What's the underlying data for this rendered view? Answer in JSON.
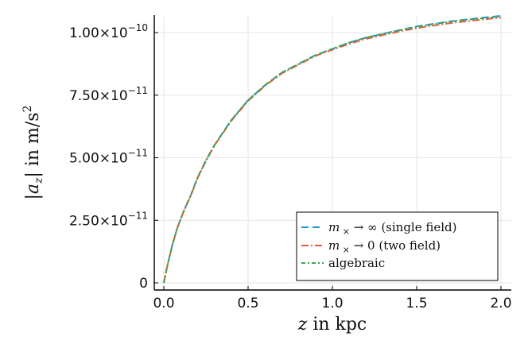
{
  "chart_data": {
    "type": "line",
    "xlabel": "z in kpc",
    "ylabel": "|a_z| in m/s²",
    "xlim": [
      0,
      2.0
    ],
    "ylim": [
      0,
      1.07e-10
    ],
    "grid": true,
    "legend_position": "bottom-right",
    "x_ticks": [
      {
        "value": 0.0,
        "label": "0.0"
      },
      {
        "value": 0.5,
        "label": "0.5"
      },
      {
        "value": 1.0,
        "label": "1.0"
      },
      {
        "value": 1.5,
        "label": "1.5"
      },
      {
        "value": 2.0,
        "label": "2.0"
      }
    ],
    "y_ticks": [
      {
        "value": 0,
        "mant": "0",
        "exp": ""
      },
      {
        "value": 2.5e-11,
        "mant": "2.50×10",
        "exp": "−11"
      },
      {
        "value": 5e-11,
        "mant": "5.00×10",
        "exp": "−11"
      },
      {
        "value": 7.5e-11,
        "mant": "7.50×10",
        "exp": "−11"
      },
      {
        "value": 1e-10,
        "mant": "1.00×10",
        "exp": "−10"
      }
    ],
    "x": [
      0.0,
      0.02,
      0.05,
      0.08,
      0.12,
      0.16,
      0.2,
      0.25,
      0.3,
      0.35,
      0.4,
      0.45,
      0.5,
      0.6,
      0.7,
      0.8,
      0.9,
      1.0,
      1.1,
      1.2,
      1.3,
      1.4,
      1.5,
      1.6,
      1.7,
      1.8,
      1.9,
      2.0
    ],
    "series": [
      {
        "name": "m_× → ∞ (single field)",
        "color": "#1a99d6",
        "dash": "9,5",
        "values": [
          0,
          6.5e-12,
          1.5e-11,
          2.2e-11,
          2.9e-11,
          3.5e-11,
          4.2e-11,
          4.9e-11,
          5.5e-11,
          6e-11,
          6.5e-11,
          6.9e-11,
          7.3e-11,
          7.9e-11,
          8.4e-11,
          8.75e-11,
          9.1e-11,
          9.35e-11,
          9.6e-11,
          9.8e-11,
          9.95e-11,
          1.01e-10,
          1.025e-10,
          1.035e-10,
          1.045e-10,
          1.053e-10,
          1.06e-10,
          1.067e-10
        ]
      },
      {
        "name": "m_× → 0 (two field)",
        "color": "#e4603a",
        "dash": "9,3,2,3",
        "values": [
          0,
          6.4e-12,
          1.49e-11,
          2.19e-11,
          2.88e-11,
          3.48e-11,
          4.18e-11,
          4.87e-11,
          5.48e-11,
          5.98e-11,
          6.47e-11,
          6.87e-11,
          7.27e-11,
          7.87e-11,
          8.37e-11,
          8.72e-11,
          9.07e-11,
          9.32e-11,
          9.55e-11,
          9.75e-11,
          9.9e-11,
          1.005e-10,
          1.018e-10,
          1.028e-10,
          1.038e-10,
          1.046e-10,
          1.053e-10,
          1.06e-10
        ]
      },
      {
        "name": "algebraic",
        "color": "#3fa34d",
        "dash": "5,3,2,3",
        "values": [
          0,
          6.5e-12,
          1.5e-11,
          2.2e-11,
          2.9e-11,
          3.5e-11,
          4.2e-11,
          4.9e-11,
          5.5e-11,
          6e-11,
          6.5e-11,
          6.9e-11,
          7.3e-11,
          7.9e-11,
          8.4e-11,
          8.75e-11,
          9.1e-11,
          9.35e-11,
          9.6e-11,
          9.8e-11,
          9.95e-11,
          1.01e-10,
          1.023e-10,
          1.034e-10,
          1.044e-10,
          1.052e-10,
          1.058e-10,
          1.064e-10
        ]
      }
    ]
  }
}
